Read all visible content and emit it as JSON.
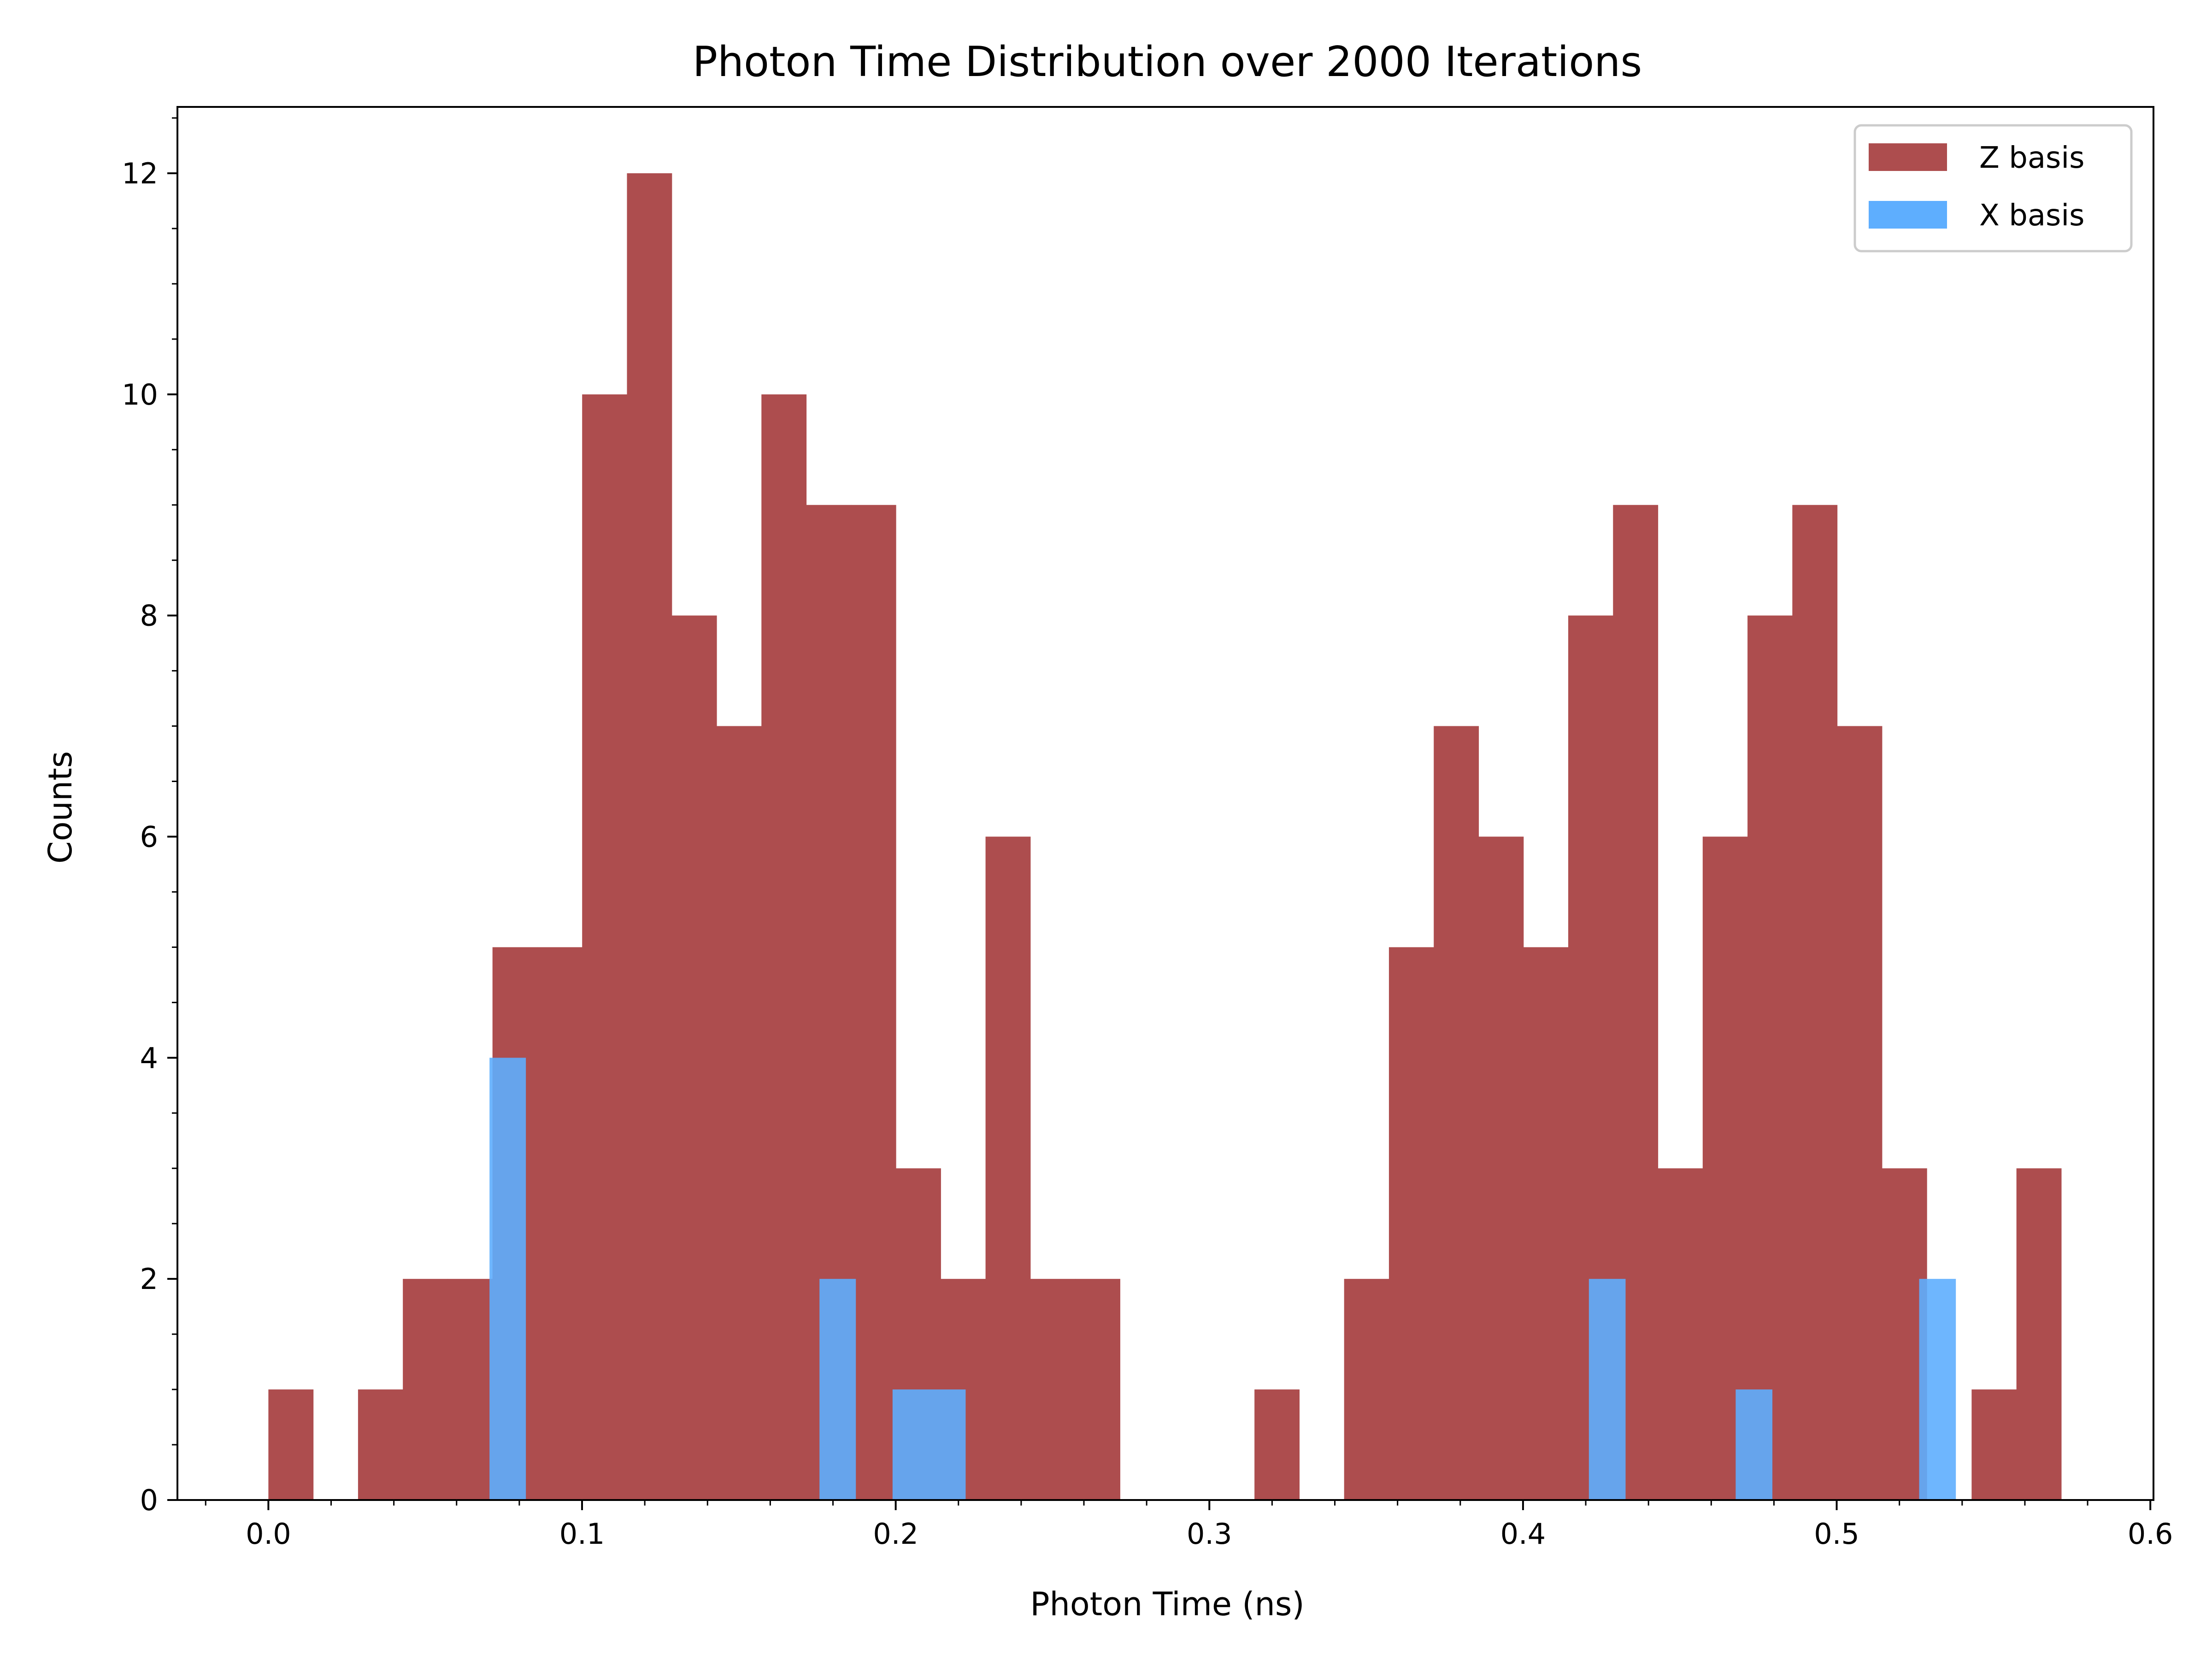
{
  "chart_data": {
    "type": "bar",
    "title": "Photon Time Distribution over 2000 Iterations",
    "xlabel": "Photon Time (ns)",
    "ylabel": "Counts",
    "xlim": [
      -0.029,
      0.601
    ],
    "ylim": [
      0,
      12.6
    ],
    "xticks": [
      0.0,
      0.1,
      0.2,
      0.3,
      0.4,
      0.5,
      0.6
    ],
    "xtick_labels": [
      "0.0",
      "0.1",
      "0.2",
      "0.3",
      "0.4",
      "0.5",
      "0.6"
    ],
    "yticks": [
      0,
      2,
      4,
      6,
      8,
      10,
      12
    ],
    "ytick_labels": [
      "0",
      "2",
      "4",
      "6",
      "8",
      "10",
      "12"
    ],
    "grid": false,
    "legend_position": "top-right",
    "series": [
      {
        "name": "Z basis",
        "color": "#AD4D4E",
        "bin_start": 0.0,
        "bin_width": 0.01429,
        "values": [
          1,
          0,
          1,
          2,
          2,
          5,
          5,
          10,
          12,
          8,
          7,
          10,
          9,
          9,
          3,
          2,
          6,
          2,
          2,
          0,
          0,
          0,
          1,
          0,
          2,
          5,
          7,
          6,
          5,
          8,
          9,
          3,
          6,
          8,
          9,
          7,
          3,
          0,
          1,
          3
        ]
      },
      {
        "name": "X basis",
        "color": "#5EAEFE",
        "bins": [
          {
            "x0": 0.0705,
            "x1": 0.0821,
            "value": 4
          },
          {
            "x0": 0.1757,
            "x1": 0.1873,
            "value": 2
          },
          {
            "x0": 0.199,
            "x1": 0.2223,
            "value": 1
          },
          {
            "x0": 0.421,
            "x1": 0.4327,
            "value": 2
          },
          {
            "x0": 0.4678,
            "x1": 0.4795,
            "value": 1
          },
          {
            "x0": 0.5263,
            "x1": 0.538,
            "value": 2
          }
        ]
      }
    ]
  }
}
